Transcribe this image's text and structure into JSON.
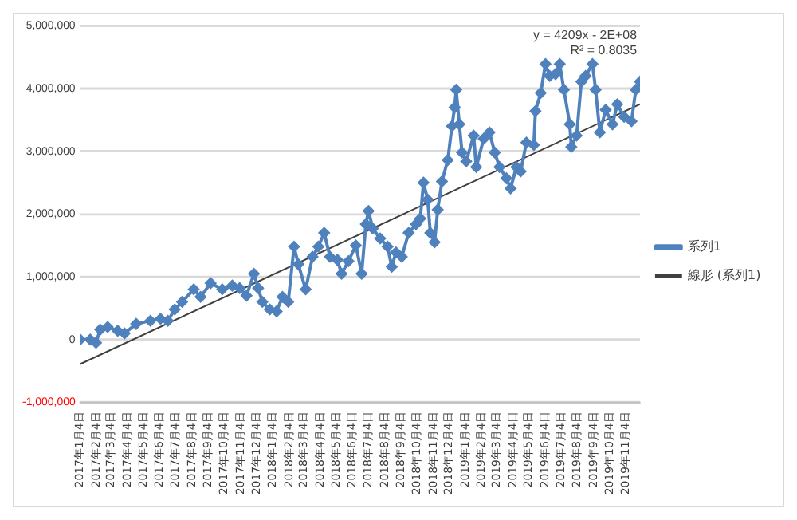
{
  "chart_data": {
    "type": "line",
    "x": [
      "2017-01-04",
      "2017-01-23",
      "2017-02-03",
      "2017-02-11",
      "2017-02-25",
      "2017-03-16",
      "2017-03-29",
      "2017-04-20",
      "2017-05-17",
      "2017-06-05",
      "2017-06-19",
      "2017-07-02",
      "2017-07-16",
      "2017-08-07",
      "2017-08-20",
      "2017-09-08",
      "2017-09-30",
      "2017-10-19",
      "2017-11-02",
      "2017-11-15",
      "2017-11-29",
      "2017-12-07",
      "2017-12-15",
      "2017-12-29",
      "2018-01-11",
      "2018-01-22",
      "2018-02-02",
      "2018-02-13",
      "2018-02-21",
      "2018-03-07",
      "2018-03-20",
      "2018-03-31",
      "2018-04-11",
      "2018-04-22",
      "2018-05-06",
      "2018-05-14",
      "2018-05-27",
      "2018-06-10",
      "2018-06-21",
      "2018-06-29",
      "2018-07-04",
      "2018-07-12",
      "2018-07-26",
      "2018-08-09",
      "2018-08-17",
      "2018-08-25",
      "2018-09-05",
      "2018-09-18",
      "2018-10-02",
      "2018-10-10",
      "2018-10-16",
      "2018-10-24",
      "2018-10-29",
      "2018-11-06",
      "2018-11-12",
      "2018-11-20",
      "2018-12-01",
      "2018-12-09",
      "2018-12-14",
      "2018-12-17",
      "2018-12-23",
      "2018-12-28",
      "2019-01-05",
      "2019-01-19",
      "2019-01-24",
      "2019-02-07",
      "2019-02-18",
      "2019-02-28",
      "2019-03-09",
      "2019-03-22",
      "2019-03-30",
      "2019-04-10",
      "2019-04-18",
      "2019-04-29",
      "2019-05-13",
      "2019-05-16",
      "2019-05-26",
      "2019-06-04",
      "2019-06-12",
      "2019-06-23",
      "2019-07-01",
      "2019-07-09",
      "2019-07-20",
      "2019-07-23",
      "2019-08-02",
      "2019-08-11",
      "2019-08-19",
      "2019-09-01",
      "2019-09-07",
      "2019-09-15",
      "2019-09-26",
      "2019-10-09",
      "2019-10-18",
      "2019-10-31",
      "2019-11-14",
      "2019-11-22",
      "2019-11-30"
    ],
    "series": [
      {
        "name": "系列1",
        "color": "#4f81bd",
        "marker": "diamond",
        "values": [
          0,
          0,
          -50000,
          160000,
          200000,
          140000,
          100000,
          250000,
          300000,
          330000,
          300000,
          480000,
          600000,
          800000,
          680000,
          900000,
          800000,
          860000,
          820000,
          700000,
          1050000,
          820000,
          600000,
          480000,
          450000,
          680000,
          600000,
          1480000,
          1200000,
          800000,
          1320000,
          1480000,
          1700000,
          1320000,
          1270000,
          1050000,
          1250000,
          1500000,
          1050000,
          1840000,
          2050000,
          1770000,
          1610000,
          1480000,
          1160000,
          1390000,
          1320000,
          1700000,
          1840000,
          1930000,
          2500000,
          2230000,
          1700000,
          1550000,
          2070000,
          2520000,
          2860000,
          3400000,
          3700000,
          3980000,
          3430000,
          2980000,
          2840000,
          3250000,
          2750000,
          3200000,
          3300000,
          2980000,
          2750000,
          2570000,
          2410000,
          2750000,
          2680000,
          3140000,
          3100000,
          3640000,
          3930000,
          4390000,
          4200000,
          4230000,
          4390000,
          3980000,
          3430000,
          3070000,
          3250000,
          4110000,
          4200000,
          4390000,
          3980000,
          3300000,
          3660000,
          3430000,
          3750000,
          3550000,
          3480000,
          3980000,
          4110000
        ]
      },
      {
        "name": "線形 (系列1)",
        "type": "line",
        "color": "#404040",
        "marker": "none",
        "x": [
          "2017-01-04",
          "2019-11-30"
        ],
        "values": [
          -390000,
          3750000
        ]
      }
    ],
    "xlim": [
      "2017-01-04",
      "2019-11-30"
    ],
    "xticks": [
      {
        "value": "2017-01-04",
        "label": "2017年1月4日"
      },
      {
        "value": "2017-02-04",
        "label": "2017年2月4日"
      },
      {
        "value": "2017-03-04",
        "label": "2017年3月4日"
      },
      {
        "value": "2017-04-04",
        "label": "2017年4月4日"
      },
      {
        "value": "2017-05-04",
        "label": "2017年5月4日"
      },
      {
        "value": "2017-06-04",
        "label": "2017年6月4日"
      },
      {
        "value": "2017-07-04",
        "label": "2017年7月4日"
      },
      {
        "value": "2017-08-04",
        "label": "2017年8月4日"
      },
      {
        "value": "2017-09-04",
        "label": "2017年9月4日"
      },
      {
        "value": "2017-10-04",
        "label": "2017年10月4日"
      },
      {
        "value": "2017-11-04",
        "label": "2017年11月4日"
      },
      {
        "value": "2017-12-04",
        "label": "2017年12月4日"
      },
      {
        "value": "2018-01-04",
        "label": "2018年1月4日"
      },
      {
        "value": "2018-02-04",
        "label": "2018年2月4日"
      },
      {
        "value": "2018-03-04",
        "label": "2018年3月4日"
      },
      {
        "value": "2018-04-04",
        "label": "2018年4月4日"
      },
      {
        "value": "2018-05-04",
        "label": "2018年5月4日"
      },
      {
        "value": "2018-06-04",
        "label": "2018年6月4日"
      },
      {
        "value": "2018-07-04",
        "label": "2018年7月4日"
      },
      {
        "value": "2018-08-04",
        "label": "2018年8月4日"
      },
      {
        "value": "2018-09-04",
        "label": "2018年9月4日"
      },
      {
        "value": "2018-10-04",
        "label": "2018年10月4日"
      },
      {
        "value": "2018-11-04",
        "label": "2018年11月4日"
      },
      {
        "value": "2018-12-04",
        "label": "2018年12月4日"
      },
      {
        "value": "2019-01-04",
        "label": "2019年1月4日"
      },
      {
        "value": "2019-02-04",
        "label": "2019年2月4日"
      },
      {
        "value": "2019-03-04",
        "label": "2019年3月4日"
      },
      {
        "value": "2019-04-04",
        "label": "2019年4月4日"
      },
      {
        "value": "2019-05-04",
        "label": "2019年5月4日"
      },
      {
        "value": "2019-06-04",
        "label": "2019年6月4日"
      },
      {
        "value": "2019-07-04",
        "label": "2019年7月4日"
      },
      {
        "value": "2019-08-04",
        "label": "2019年8月4日"
      },
      {
        "value": "2019-09-04",
        "label": "2019年9月4日"
      },
      {
        "value": "2019-10-04",
        "label": "2019年10月4日"
      },
      {
        "value": "2019-11-04",
        "label": "2019年11月4日"
      }
    ],
    "ylim": [
      -1000000,
      5000000
    ],
    "yticks": [
      {
        "value": -1000000,
        "label": "-1,000,000"
      },
      {
        "value": 0,
        "label": "0"
      },
      {
        "value": 1000000,
        "label": "1,000,000"
      },
      {
        "value": 2000000,
        "label": "2,000,000"
      },
      {
        "value": 3000000,
        "label": "3,000,000"
      },
      {
        "value": 4000000,
        "label": "4,000,000"
      },
      {
        "value": 5000000,
        "label": "5,000,000"
      }
    ],
    "grid": "y",
    "legend": "right",
    "annotations": [
      "y = 4209x - 2E+08",
      "R² = 0.8035"
    ]
  }
}
